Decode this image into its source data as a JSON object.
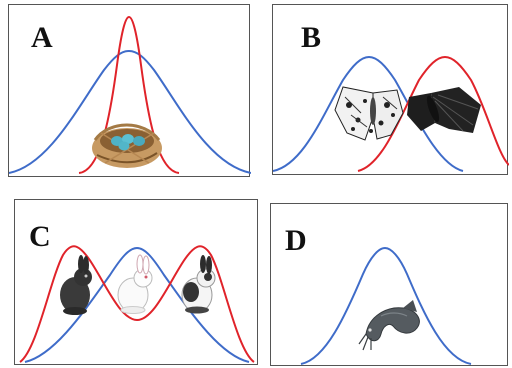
{
  "panels": [
    {
      "letter": "A",
      "depicts": "bird-nest-with-eggs"
    },
    {
      "letter": "B",
      "depicts": "light-and-dark-peppered-moths"
    },
    {
      "letter": "C",
      "depicts": "dark-white-and-patched-rabbits"
    },
    {
      "letter": "D",
      "depicts": "catfish"
    }
  ],
  "colors": {
    "original_distribution": "#3f6cc9",
    "selected_distribution": "#e0232a",
    "border": "#555555"
  }
}
